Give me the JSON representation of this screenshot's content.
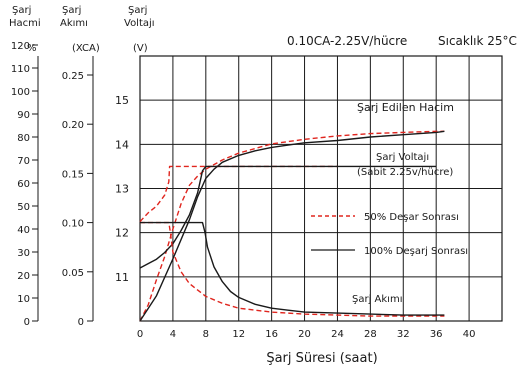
{
  "chart_data": {
    "type": "line",
    "headings": {
      "capacity": [
        "Şarj",
        "Hacmi"
      ],
      "current": [
        "Şarj",
        "Akımı"
      ],
      "voltage": [
        "Şarj",
        "Voltajı"
      ]
    },
    "units": {
      "capacity": "%",
      "current": "(XCA)",
      "voltage": "(V)"
    },
    "condition": "0.10CA-2.25V/hücre",
    "temperature": "Sıcaklık 25°C",
    "xlabel": "Şarj Süresi (saat)",
    "x_ticks": [
      "0",
      "4",
      "8",
      "12",
      "16",
      "20",
      "24",
      "28",
      "32",
      "36",
      "40"
    ],
    "xlim": [
      0,
      44
    ],
    "voltage_axis": {
      "ylim": [
        10,
        16
      ],
      "ticks": [
        "11",
        "12",
        "13",
        "14",
        "15"
      ]
    },
    "current_axis": {
      "ticks": [
        "0",
        "0.05",
        "0.10",
        "0.15",
        "0.20",
        "0.25"
      ]
    },
    "capacity_axis": {
      "ticks": [
        "0",
        "10",
        "20",
        "30",
        "40",
        "50",
        "60",
        "70",
        "80",
        "90",
        "100",
        "110",
        "120"
      ]
    },
    "legend": {
      "dashed": "50% Deşar Sonrası",
      "solid": "100% Deşarj Sonrası"
    },
    "annotations": {
      "capacity": "Şarj Edilen Hacim",
      "voltage": "Şarj Voltajı",
      "voltage_note": "(Sabit 2.25v/hücre)",
      "current": "Şarj Akımı"
    },
    "series": [
      {
        "name": "Şarj Edilen Hacim — 50% Deşar Sonrası",
        "style": "dashed",
        "color": "#e0261f",
        "x": [
          0,
          1,
          2,
          3,
          4,
          5,
          6,
          7,
          8,
          10,
          12,
          14,
          16,
          18,
          20,
          24,
          28,
          32,
          36,
          37
        ],
        "y": [
          0,
          7,
          18,
          28,
          40,
          51,
          59,
          63,
          66,
          70,
          73,
          75,
          77,
          78,
          79,
          80.5,
          81.5,
          82,
          82.5,
          82.5
        ]
      },
      {
        "name": "Şarj Edilen Hacim — 100% Deşarj Sonrası",
        "style": "solid",
        "color": "#1a1a1a",
        "x": [
          0,
          2,
          4,
          6,
          7,
          8,
          9,
          10,
          12,
          14,
          16,
          18,
          20,
          24,
          28,
          32,
          36,
          37
        ],
        "y": [
          0,
          11,
          27,
          44,
          54,
          62,
          66,
          69,
          72,
          74,
          75.5,
          76.5,
          77.5,
          78.5,
          80,
          81,
          82,
          82.5
        ]
      },
      {
        "name": "Şarj Voltajı — 50% Deşar Sonrası",
        "style": "dashed",
        "color": "#e0261f",
        "x": [
          0,
          1,
          2,
          3,
          3.5,
          3.6,
          24
        ],
        "y": [
          12.25,
          12.45,
          12.6,
          12.85,
          13.15,
          13.5,
          13.5
        ]
      },
      {
        "name": "Şarj Voltajı — 100% Deşarj Sonrası",
        "style": "solid",
        "color": "#1a1a1a",
        "x": [
          0,
          1,
          2,
          3,
          4,
          5,
          6,
          7,
          7.6,
          8,
          36
        ],
        "y": [
          11.2,
          11.3,
          11.4,
          11.55,
          11.75,
          12.05,
          12.4,
          12.9,
          13.4,
          13.5,
          13.5
        ]
      },
      {
        "name": "Şarj Akımı — 50% Deşar Sonrası",
        "style": "dashed",
        "color": "#e0261f",
        "x": [
          0,
          3.5,
          3.7,
          4,
          5,
          6,
          8,
          10,
          12,
          16,
          20,
          24,
          28,
          32,
          37
        ],
        "y": [
          0.1,
          0.1,
          0.09,
          0.07,
          0.05,
          0.038,
          0.025,
          0.018,
          0.013,
          0.009,
          0.007,
          0.006,
          0.005,
          0.005,
          0.005
        ]
      },
      {
        "name": "Şarj Akımı — 100% Deşarj Sonrası",
        "style": "solid",
        "color": "#1a1a1a",
        "x": [
          0,
          7.6,
          7.9,
          8.2,
          9,
          10,
          11,
          12,
          14,
          16,
          18,
          20,
          24,
          28,
          32,
          37
        ],
        "y": [
          0.1,
          0.1,
          0.09,
          0.075,
          0.055,
          0.04,
          0.03,
          0.024,
          0.017,
          0.013,
          0.011,
          0.009,
          0.008,
          0.007,
          0.006,
          0.006
        ]
      }
    ]
  }
}
